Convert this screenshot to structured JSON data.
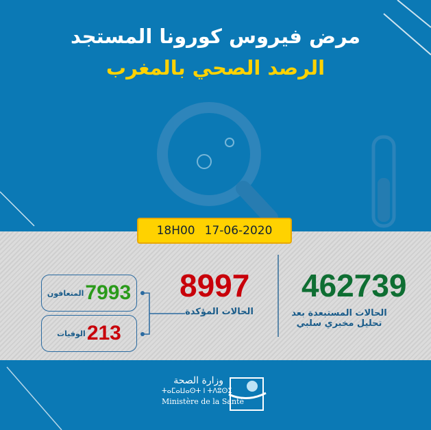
{
  "header": {
    "title": "مرض فيروس كورونا المستجد",
    "subtitle": "الرصد الصحي بالمغرب"
  },
  "date": {
    "time": "18H00",
    "date": "17-06-2020"
  },
  "stats": {
    "excluded": {
      "value": "462739",
      "label_line1": "الحالات المستبعدة بعد",
      "label_line2": "تحليل مخبري سلبي",
      "color": "#0e6e32"
    },
    "confirmed": {
      "value": "8997",
      "label": "الحالات المؤكدة",
      "color": "#c8000a"
    },
    "recovered": {
      "value": "7993",
      "label": "المتعافون",
      "color": "#2a9a1a"
    },
    "deaths": {
      "value": "213",
      "label": "الوفيات",
      "color": "#c8000a"
    }
  },
  "footer": {
    "ministry_ar": "وزارة الصحة",
    "ministry_tifinagh": "ⵜⴰⵎⴰⵡⴰⵙⵜ ⵏ ⵜⴷⵓⵙⵉ",
    "ministry_fr": "Ministère de la Santé"
  },
  "icons": [
    "magnifier-virus-icon",
    "test-tube-icon",
    "ministry-logo"
  ]
}
